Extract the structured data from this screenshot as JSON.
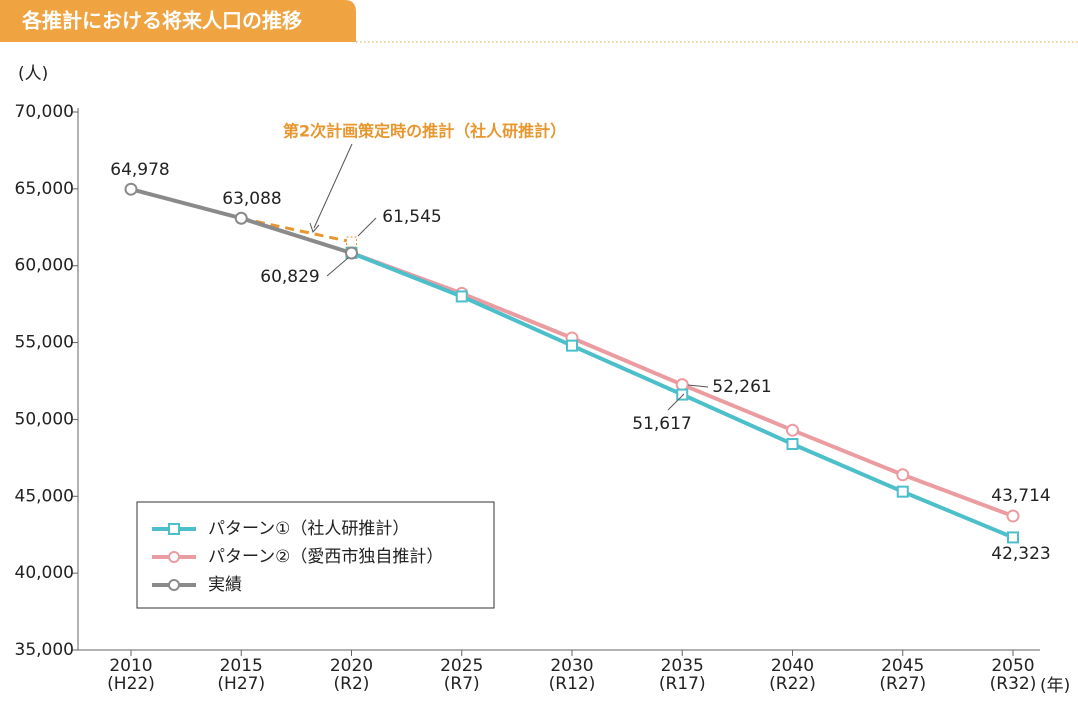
{
  "chart_data": {
    "type": "line",
    "title": "各推計における将来人口の推移",
    "y_unit": "(人)",
    "x_unit": "(年)",
    "categories": [
      "2010\n(H22)",
      "2015\n(H27)",
      "2020\n(R2)",
      "2025\n(R7)",
      "2030\n(R12)",
      "2035\n(R17)",
      "2040\n(R22)",
      "2045\n(R27)",
      "2050\n(R32)"
    ],
    "ylim": [
      35000,
      70000
    ],
    "yticks": [
      {
        "value": 35000,
        "label": "35,000"
      },
      {
        "value": 40000,
        "label": "40,000"
      },
      {
        "value": 45000,
        "label": "45,000"
      },
      {
        "value": 50000,
        "label": "50,000"
      },
      {
        "value": 55000,
        "label": "55,000"
      },
      {
        "value": 60000,
        "label": "60,000"
      },
      {
        "value": 65000,
        "label": "65,000"
      },
      {
        "value": 70000,
        "label": "70,000"
      }
    ],
    "series": [
      {
        "name": "パターン①（社人研推計）",
        "color": "#4cbfca",
        "marker": "square",
        "values": [
          null,
          null,
          60829,
          58000,
          54800,
          51617,
          48400,
          45300,
          42323
        ],
        "value_labels": [
          null,
          null,
          null,
          null,
          null,
          "51,617",
          null,
          null,
          "42,323"
        ]
      },
      {
        "name": "パターン②（愛西市独自推計）",
        "color": "#eb9ca1",
        "marker": "circle",
        "values": [
          null,
          null,
          60829,
          58200,
          55300,
          52261,
          49300,
          46400,
          43714
        ],
        "value_labels": [
          null,
          null,
          null,
          null,
          null,
          "52,261",
          null,
          null,
          "43,714"
        ]
      },
      {
        "name": "実績",
        "color": "#8a8a8a",
        "marker": "circle",
        "values": [
          64978,
          63088,
          60829,
          null,
          null,
          null,
          null,
          null,
          null
        ],
        "value_labels": [
          "64,978",
          "63,088",
          "60,829",
          null,
          null,
          null,
          null,
          null,
          null
        ]
      }
    ],
    "comparison": {
      "name": "第2次計画策定時の推計（社人研推計）",
      "color": "#e8962e",
      "dashed": true,
      "values": [
        null,
        63088,
        61545,
        null,
        null,
        null,
        null,
        null,
        null
      ],
      "value_labels": [
        null,
        null,
        "61,545",
        null,
        null,
        null,
        null,
        null,
        null
      ]
    }
  }
}
